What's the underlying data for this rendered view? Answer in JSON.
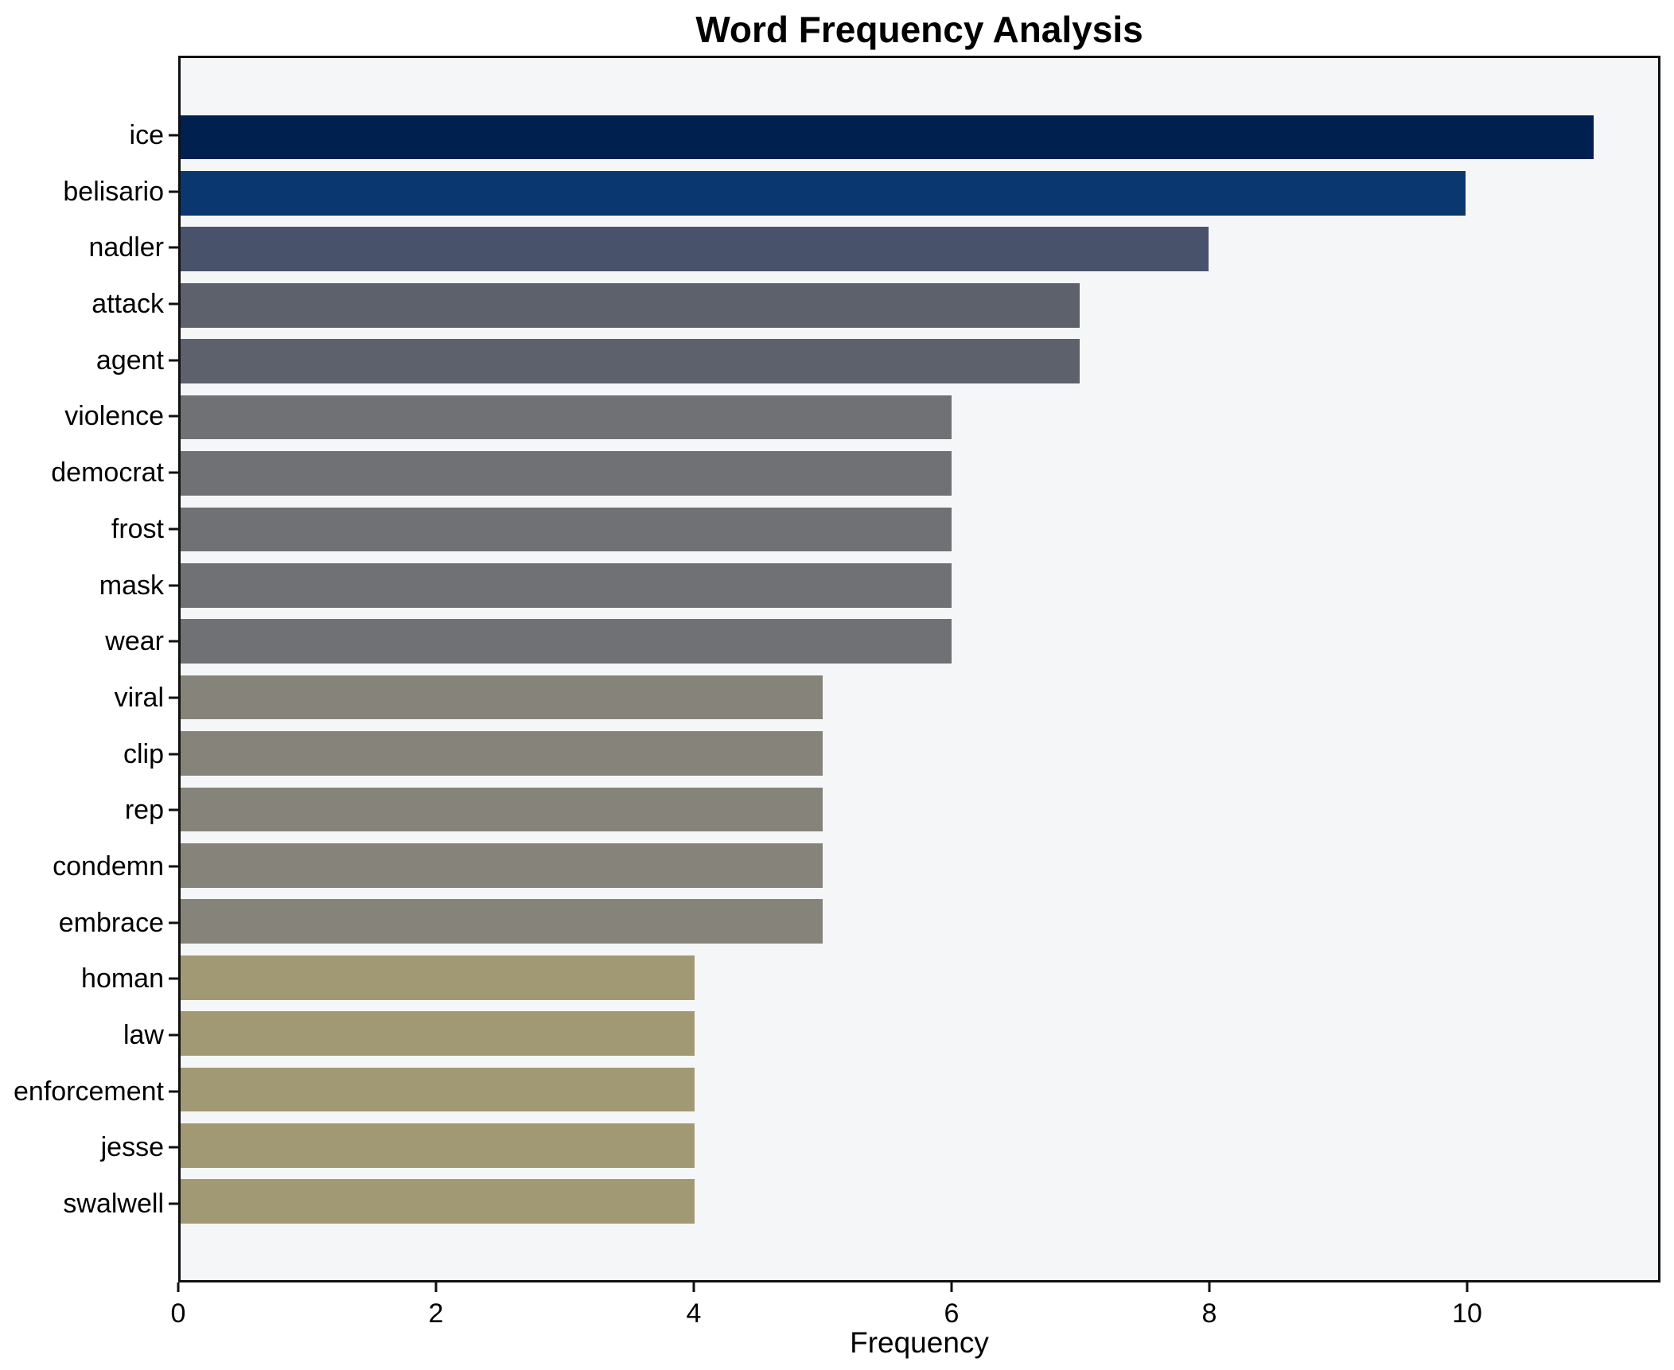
{
  "chart_data": {
    "type": "bar",
    "orientation": "horizontal",
    "title": "Word Frequency Analysis",
    "xlabel": "Frequency",
    "ylabel": "",
    "categories": [
      "ice",
      "belisario",
      "nadler",
      "attack",
      "agent",
      "violence",
      "democrat",
      "frost",
      "mask",
      "wear",
      "viral",
      "clip",
      "rep",
      "condemn",
      "embrace",
      "homan",
      "law",
      "enforcement",
      "jesse",
      "swalwell"
    ],
    "values": [
      11,
      10,
      8,
      7,
      7,
      6,
      6,
      6,
      6,
      6,
      5,
      5,
      5,
      5,
      5,
      4,
      4,
      4,
      4,
      4
    ],
    "bar_colors": [
      "#002150",
      "#0a3770",
      "#48526b",
      "#5c616b",
      "#5c616b",
      "#707174",
      "#707174",
      "#707174",
      "#707174",
      "#707174",
      "#86847a",
      "#86847a",
      "#86847a",
      "#86847a",
      "#86847a",
      "#a09974",
      "#a09974",
      "#a09974",
      "#a09974",
      "#a09974"
    ],
    "xticks": [
      0,
      2,
      4,
      6,
      8,
      10
    ],
    "xlim": [
      0,
      11.5
    ],
    "grid": false,
    "legend": null,
    "plot_background": "#f5f6f7",
    "spine_color": "#111111",
    "text_color": "#000000"
  }
}
